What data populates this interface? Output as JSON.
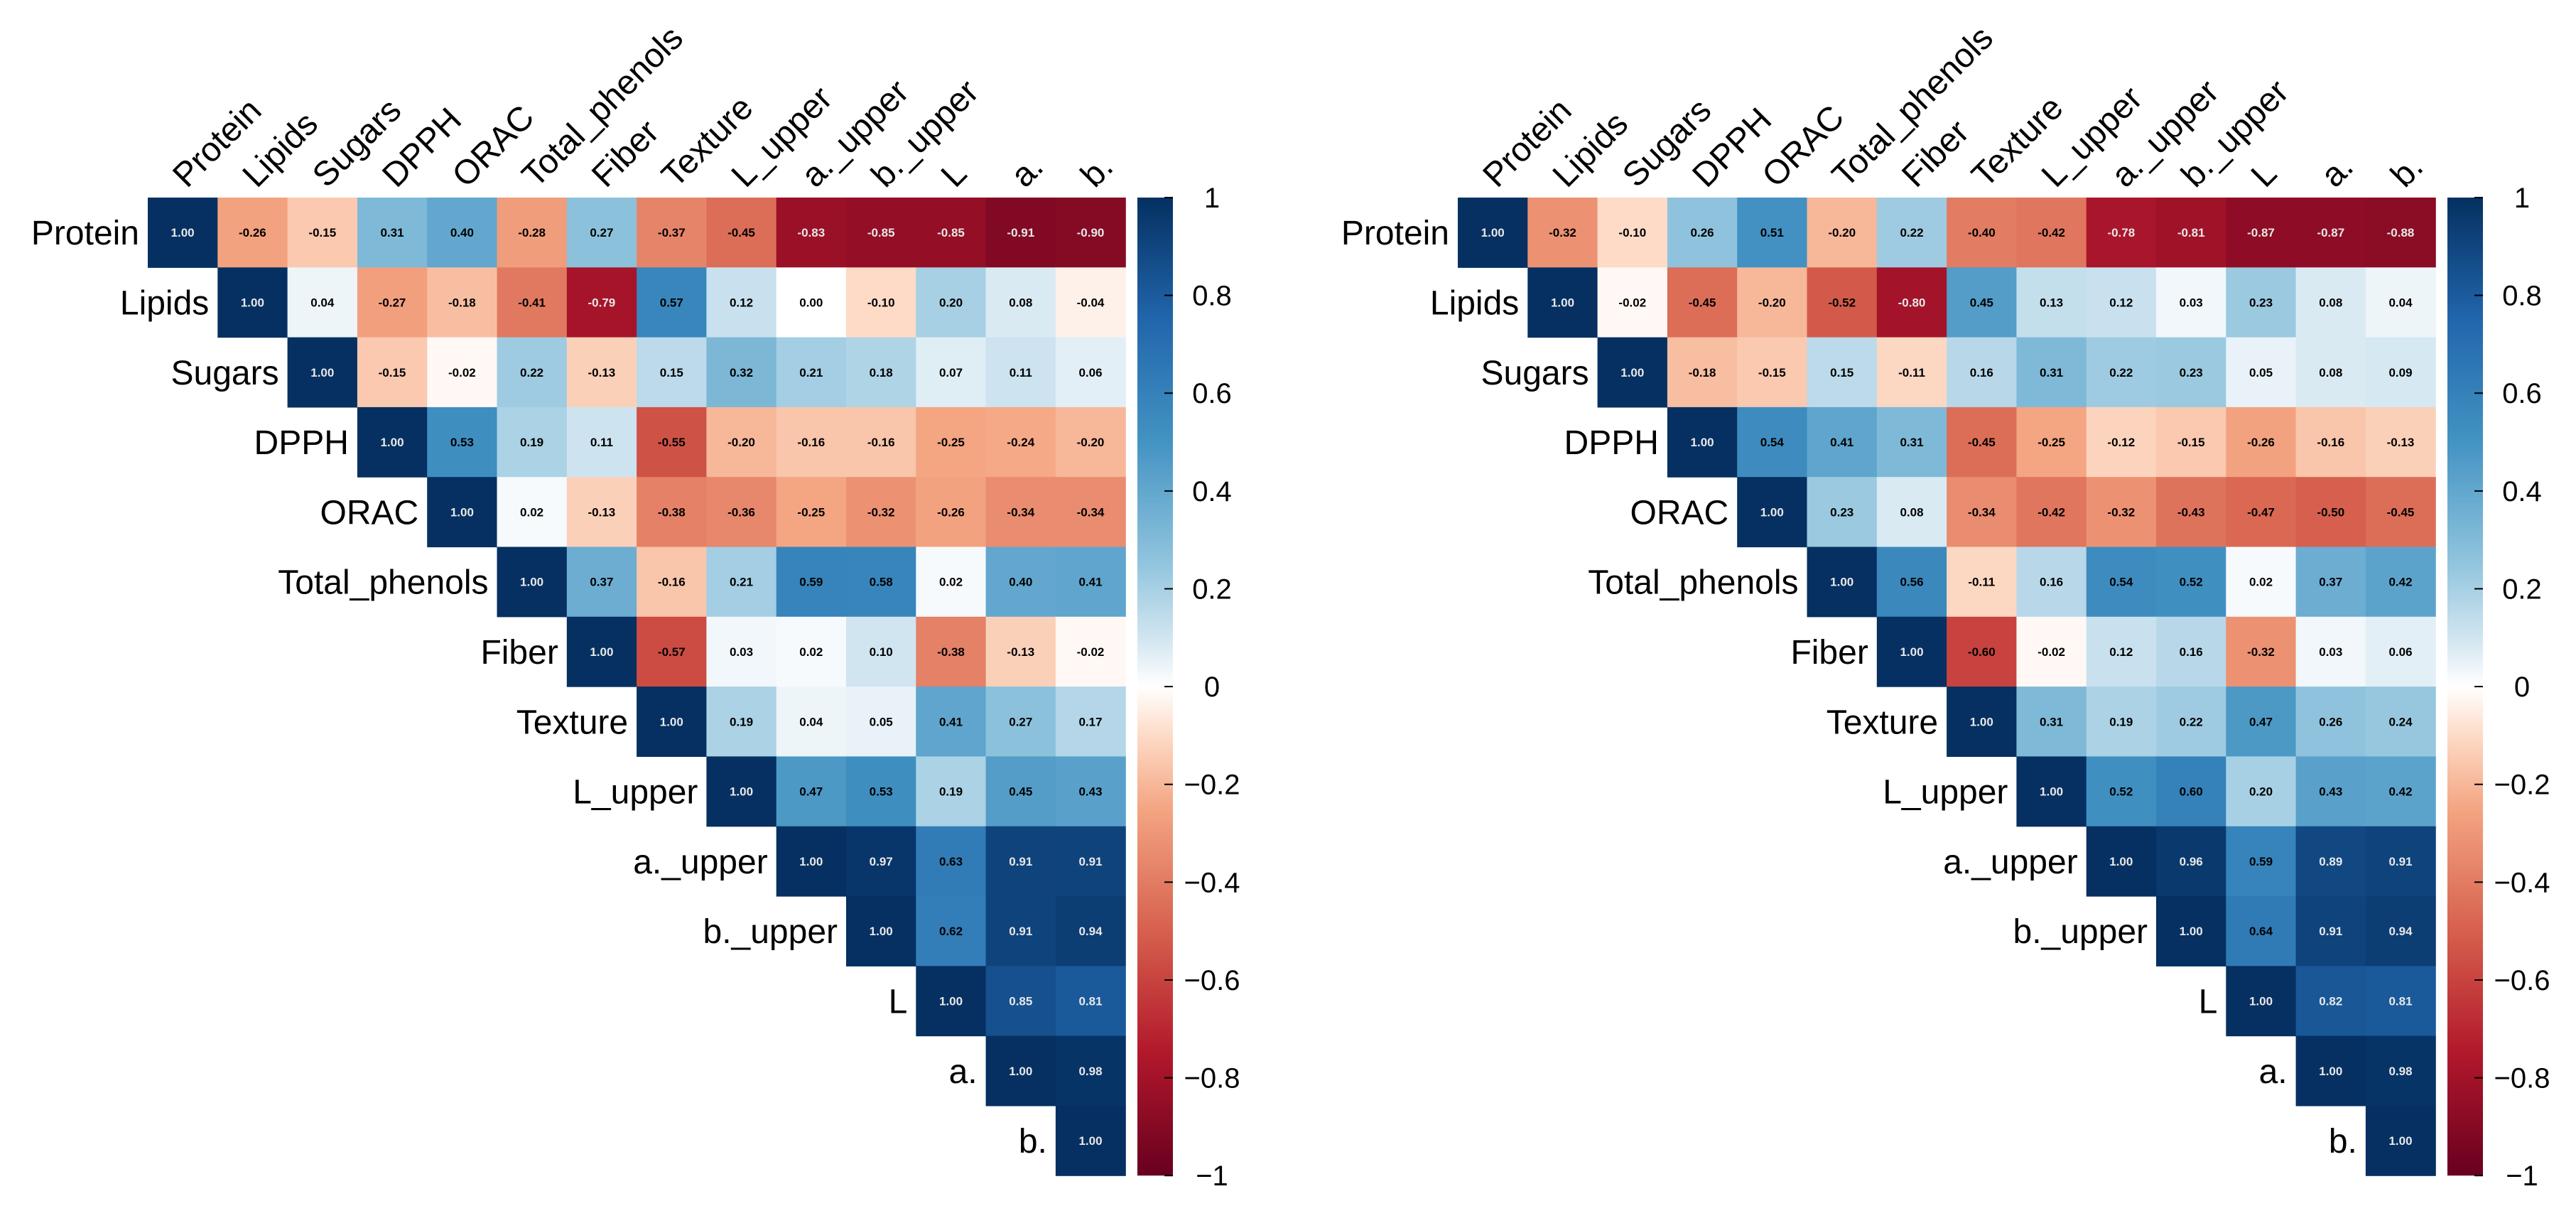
{
  "chart_data": [
    {
      "type": "heatmap",
      "variant": "correlation-upper-triangle",
      "variables": [
        "Protein",
        "Lipids",
        "Sugars",
        "DPPH",
        "ORAC",
        "Total_phenols",
        "Fiber",
        "Texture",
        "L_upper",
        "a._upper",
        "b._upper",
        "L",
        "a.",
        "b."
      ],
      "matrix": [
        [
          "1.00",
          "-0.26",
          "-0.15",
          "0.31",
          "0.40",
          "-0.28",
          "0.27",
          "-0.37",
          "-0.45",
          "-0.83",
          "-0.85",
          "-0.85",
          "-0.91",
          "-0.90"
        ],
        [
          "1.00",
          "0.04",
          "-0.27",
          "-0.18",
          "-0.41",
          "-0.79",
          "0.57",
          "0.12",
          "0.00",
          "-0.10",
          "0.20",
          "0.08",
          "-0.04"
        ],
        [
          "1.00",
          "-0.15",
          "-0.02",
          "0.22",
          "-0.13",
          "0.15",
          "0.32",
          "0.21",
          "0.18",
          "0.07",
          "0.11",
          "0.06"
        ],
        [
          "1.00",
          "0.53",
          "0.19",
          "0.11",
          "-0.55",
          "-0.20",
          "-0.16",
          "-0.16",
          "-0.25",
          "-0.24",
          "-0.20"
        ],
        [
          "1.00",
          "0.02",
          "-0.13",
          "-0.38",
          "-0.36",
          "-0.25",
          "-0.32",
          "-0.26",
          "-0.34",
          "-0.34"
        ],
        [
          "1.00",
          "0.37",
          "-0.16",
          "0.21",
          "0.59",
          "0.58",
          "0.02",
          "0.40",
          "0.41"
        ],
        [
          "1.00",
          "-0.57",
          "0.03",
          "0.02",
          "0.10",
          "-0.38",
          "-0.13",
          "-0.02"
        ],
        [
          "1.00",
          "0.19",
          "0.04",
          "0.05",
          "0.41",
          "0.27",
          "0.17"
        ],
        [
          "1.00",
          "0.47",
          "0.53",
          "0.19",
          "0.45",
          "0.43"
        ],
        [
          "1.00",
          "0.97",
          "0.63",
          "0.91",
          "0.91"
        ],
        [
          "1.00",
          "0.62",
          "0.91",
          "0.94"
        ],
        [
          "1.00",
          "0.85",
          "0.81"
        ],
        [
          "1.00",
          "0.98"
        ],
        [
          "1.00"
        ]
      ],
      "colorbar": {
        "range": [
          -1,
          1
        ],
        "ticks": [
          "1",
          "0.8",
          "0.6",
          "0.4",
          "0.2",
          "0",
          "−0.2",
          "−0.4",
          "−0.6",
          "−0.8",
          "−1"
        ]
      }
    },
    {
      "type": "heatmap",
      "variant": "correlation-upper-triangle",
      "variables": [
        "Protein",
        "Lipids",
        "Sugars",
        "DPPH",
        "ORAC",
        "Total_phenols",
        "Fiber",
        "Texture",
        "L_upper",
        "a._upper",
        "b._upper",
        "L",
        "a.",
        "b."
      ],
      "matrix": [
        [
          "1.00",
          "-0.32",
          "-0.10",
          "0.26",
          "0.51",
          "-0.20",
          "0.22",
          "-0.40",
          "-0.42",
          "-0.78",
          "-0.81",
          "-0.87",
          "-0.87",
          "-0.88"
        ],
        [
          "1.00",
          "-0.02",
          "-0.45",
          "-0.20",
          "-0.52",
          "-0.80",
          "0.45",
          "0.13",
          "0.12",
          "0.03",
          "0.23",
          "0.08",
          "0.04"
        ],
        [
          "1.00",
          "-0.18",
          "-0.15",
          "0.15",
          "-0.11",
          "0.16",
          "0.31",
          "0.22",
          "0.23",
          "0.05",
          "0.08",
          "0.09"
        ],
        [
          "1.00",
          "0.54",
          "0.41",
          "0.31",
          "-0.45",
          "-0.25",
          "-0.12",
          "-0.15",
          "-0.26",
          "-0.16",
          "-0.13"
        ],
        [
          "1.00",
          "0.23",
          "0.08",
          "-0.34",
          "-0.42",
          "-0.32",
          "-0.43",
          "-0.47",
          "-0.50",
          "-0.45"
        ],
        [
          "1.00",
          "0.56",
          "-0.11",
          "0.16",
          "0.54",
          "0.52",
          "0.02",
          "0.37",
          "0.42"
        ],
        [
          "1.00",
          "-0.60",
          "-0.02",
          "0.12",
          "0.16",
          "-0.32",
          "0.03",
          "0.06"
        ],
        [
          "1.00",
          "0.31",
          "0.19",
          "0.22",
          "0.47",
          "0.26",
          "0.24"
        ],
        [
          "1.00",
          "0.52",
          "0.60",
          "0.20",
          "0.43",
          "0.42"
        ],
        [
          "1.00",
          "0.96",
          "0.59",
          "0.89",
          "0.91"
        ],
        [
          "1.00",
          "0.64",
          "0.91",
          "0.94"
        ],
        [
          "1.00",
          "0.82",
          "0.81"
        ],
        [
          "1.00",
          "0.98"
        ],
        [
          "1.00"
        ]
      ],
      "colorbar": {
        "range": [
          -1,
          1
        ],
        "ticks": [
          "1",
          "0.8",
          "0.6",
          "0.4",
          "0.2",
          "0",
          "−0.2",
          "−0.4",
          "−0.6",
          "−0.8",
          "−1"
        ]
      }
    }
  ]
}
